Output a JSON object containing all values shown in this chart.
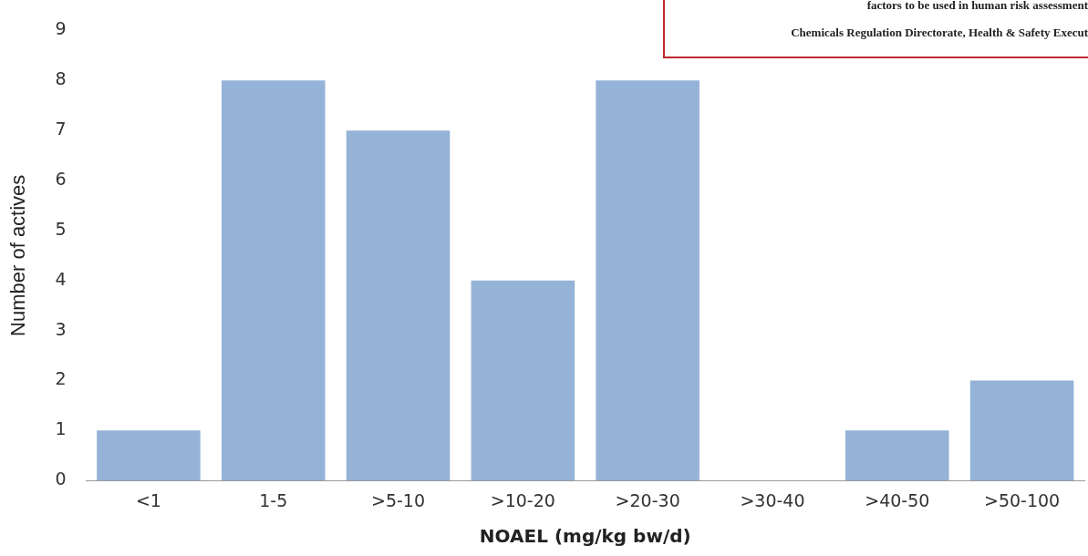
{
  "chart_data": {
    "type": "bar",
    "categories": [
      "<1",
      "1-5",
      ">5-10",
      ">10-20",
      ">20-30",
      ">30-40",
      ">40-50",
      ">50-100"
    ],
    "values": [
      1,
      8,
      7,
      4,
      8,
      0,
      1,
      2
    ],
    "color": "#95b3d7",
    "xlabel": "NOAEL (mg/kg bw/d)",
    "ylabel": "Number of actives",
    "ylim": [
      0,
      9
    ],
    "yticks": [
      0,
      1,
      2,
      3,
      4,
      5,
      6,
      7,
      8,
      9
    ],
    "grid": false,
    "legend": false,
    "annotations": [
      "factors to be used in human risk assessment",
      "Chemicals Regulation Directorate, Health & Safety Execut"
    ]
  }
}
